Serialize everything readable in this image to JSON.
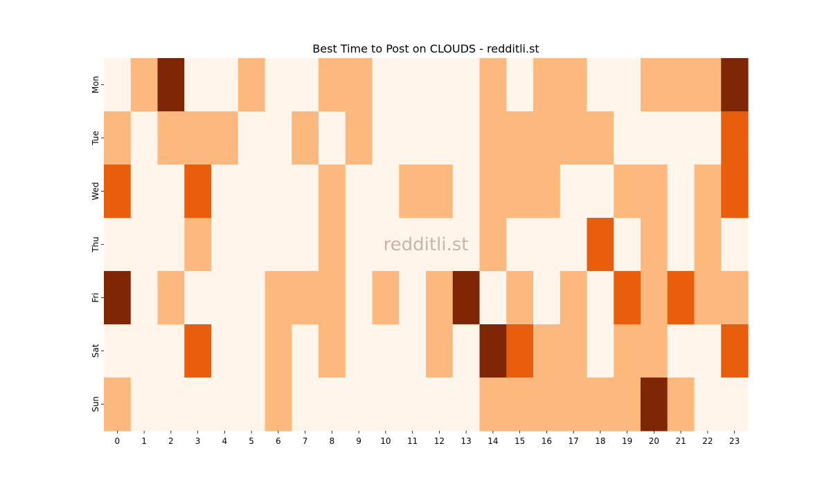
{
  "chart_data": {
    "type": "heatmap",
    "title": "Best Time to Post on CLOUDS - redditli.st",
    "watermark": "redditli.st",
    "x_labels": [
      "0",
      "1",
      "2",
      "3",
      "4",
      "5",
      "6",
      "7",
      "8",
      "9",
      "10",
      "11",
      "12",
      "13",
      "14",
      "15",
      "16",
      "17",
      "18",
      "19",
      "20",
      "21",
      "22",
      "23"
    ],
    "y_labels": [
      "Mon",
      "Tue",
      "Wed",
      "Thu",
      "Fri",
      "Sat",
      "Sun"
    ],
    "values": [
      [
        0,
        1,
        3,
        0,
        0,
        1,
        0,
        0,
        1,
        1,
        0,
        0,
        0,
        0,
        1,
        0,
        1,
        1,
        0,
        0,
        1,
        1,
        1,
        3
      ],
      [
        1,
        0,
        1,
        1,
        1,
        0,
        0,
        1,
        0,
        1,
        0,
        0,
        0,
        0,
        1,
        1,
        1,
        1,
        1,
        0,
        0,
        0,
        0,
        2
      ],
      [
        2,
        0,
        0,
        2,
        0,
        0,
        0,
        0,
        1,
        0,
        0,
        1,
        1,
        0,
        1,
        1,
        1,
        0,
        0,
        1,
        1,
        0,
        1,
        2
      ],
      [
        0,
        0,
        0,
        1,
        0,
        0,
        0,
        0,
        1,
        0,
        0,
        0,
        0,
        0,
        1,
        0,
        0,
        0,
        2,
        0,
        1,
        0,
        1,
        0
      ],
      [
        3,
        0,
        1,
        0,
        0,
        0,
        1,
        1,
        1,
        0,
        1,
        0,
        1,
        3,
        0,
        1,
        0,
        1,
        0,
        2,
        1,
        2,
        1,
        1
      ],
      [
        0,
        0,
        0,
        2,
        0,
        0,
        1,
        0,
        1,
        0,
        0,
        0,
        1,
        0,
        3,
        2,
        1,
        1,
        0,
        1,
        1,
        0,
        0,
        2
      ],
      [
        1,
        0,
        0,
        0,
        0,
        0,
        1,
        0,
        0,
        0,
        0,
        0,
        0,
        0,
        1,
        1,
        1,
        1,
        1,
        1,
        3,
        1,
        0,
        0
      ]
    ],
    "color_scale": [
      "#fff5eb",
      "#fdb97d",
      "#e95e0d",
      "#7f2704"
    ],
    "legend": "none"
  }
}
